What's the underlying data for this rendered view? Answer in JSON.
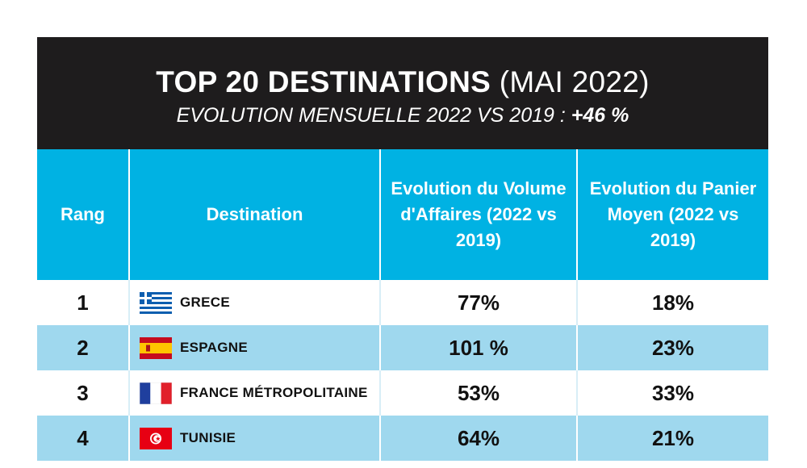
{
  "header": {
    "title_main": "TOP 20 DESTINATIONS",
    "title_period": "(MAI 2022)",
    "subtitle_label": "EVOLUTION MENSUELLE 2022 VS 2019 :",
    "subtitle_value": "+46 %"
  },
  "columns": {
    "rank": "Rang",
    "destination": "Destination",
    "volume": "Evolution du Volume d'Affaires (2022 vs 2019)",
    "basket": "Evolution du Panier Moyen (2022 vs 2019)"
  },
  "rows": [
    {
      "rank": "1",
      "destination": "GRECE",
      "flag": "greece-flag-icon",
      "volume": "77%",
      "basket": "18%"
    },
    {
      "rank": "2",
      "destination": "ESPAGNE",
      "flag": "spain-flag-icon",
      "volume": "101 %",
      "basket": "23%"
    },
    {
      "rank": "3",
      "destination": "FRANCE MÉTROPOLITAINE",
      "flag": "france-flag-icon",
      "volume": "53%",
      "basket": "33%"
    },
    {
      "rank": "4",
      "destination": "TUNISIE",
      "flag": "tunisia-flag-icon",
      "volume": "64%",
      "basket": "21%"
    }
  ],
  "colors": {
    "header_background": "#1e1c1d",
    "column_header_background": "#00b2e3",
    "alternate_row_background": "#9fd8ee"
  }
}
